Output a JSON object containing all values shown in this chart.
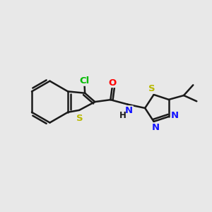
{
  "background_color": "#e8e8e8",
  "bond_color": "#1a1a1a",
  "bond_width": 1.8,
  "atom_colors": {
    "S": "#b8b800",
    "N": "#1414ff",
    "O": "#ff0000",
    "Cl": "#00bb00",
    "H": "#1a1a1a"
  },
  "figsize": [
    3.0,
    3.0
  ],
  "dpi": 100
}
